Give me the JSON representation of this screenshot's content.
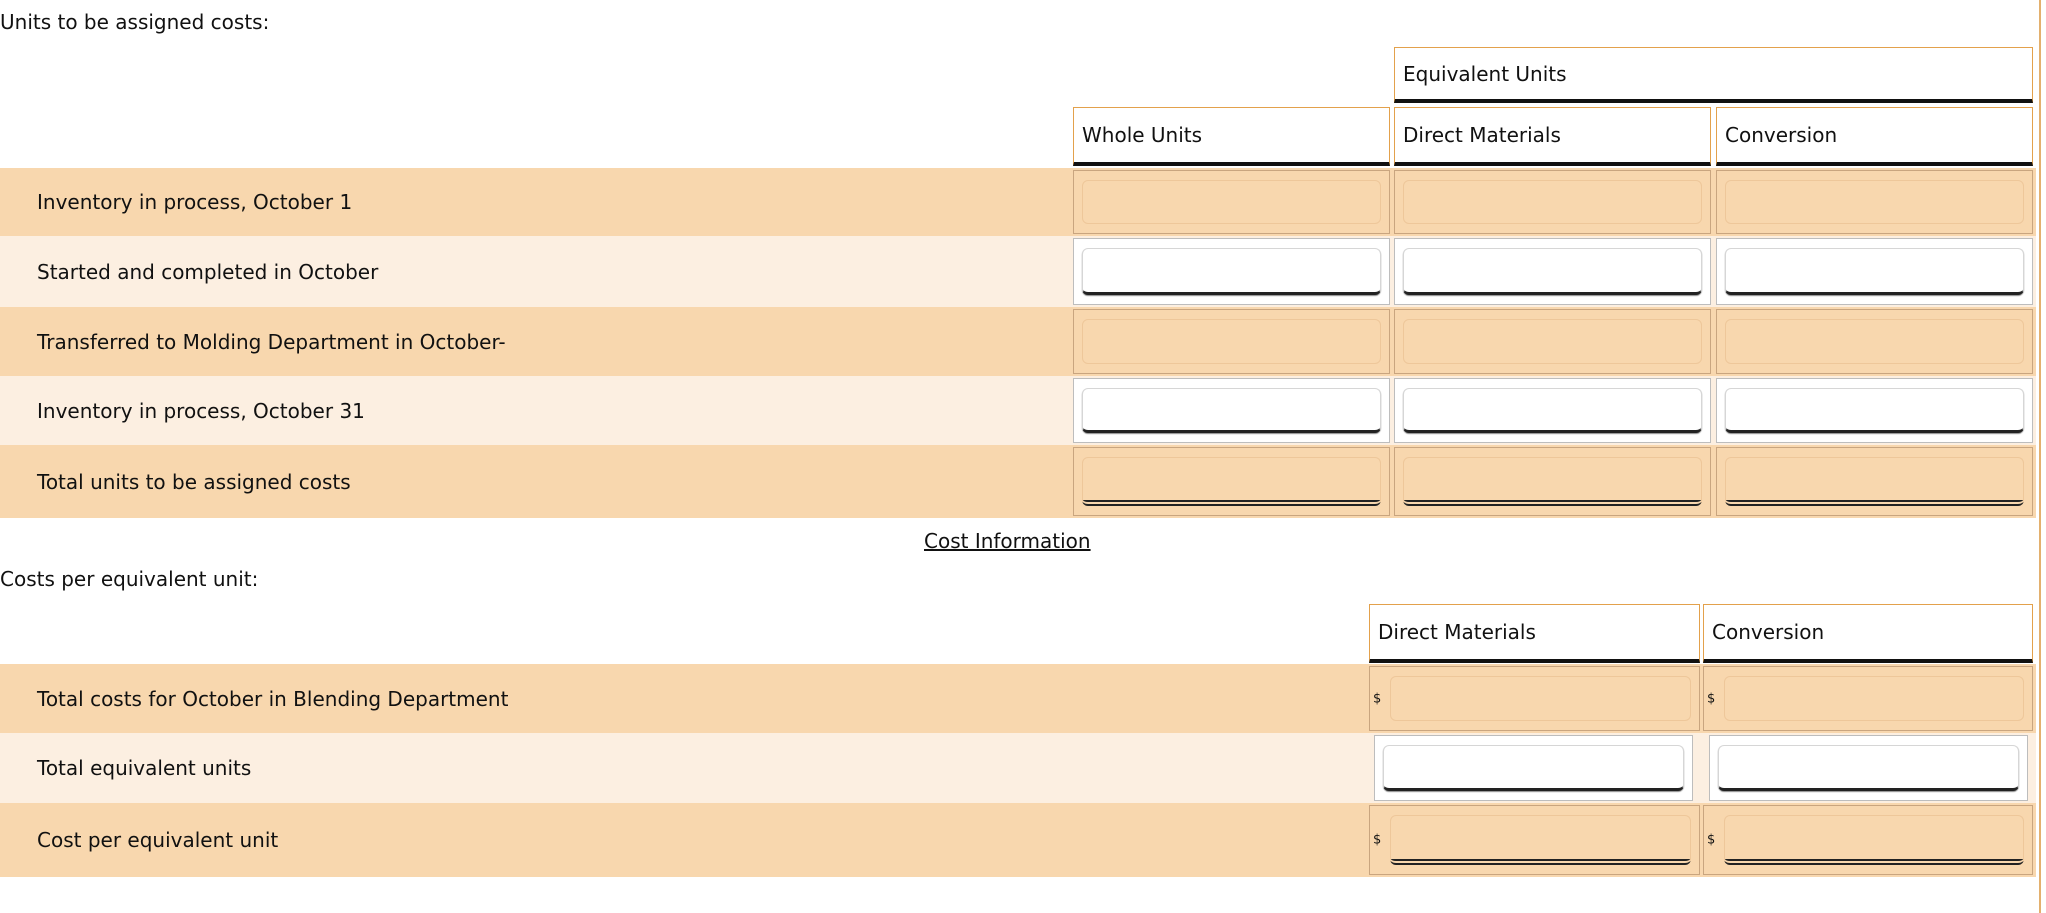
{
  "units_section": {
    "title": "Units to be assigned costs:",
    "group_header": "Equivalent Units",
    "columns": [
      "Whole Units",
      "Direct Materials",
      "Conversion"
    ],
    "rows": [
      {
        "label": "Inventory in process, October 1",
        "style": "readonly"
      },
      {
        "label": "Started and completed in October",
        "style": "input"
      },
      {
        "label": "Transferred to Molding Department in October-",
        "style": "readonly"
      },
      {
        "label": "Inventory in process, October 31",
        "style": "input"
      },
      {
        "label": "Total units to be assigned costs",
        "style": "total"
      }
    ]
  },
  "cost_information_link": "Cost Information",
  "cost_section": {
    "title": "Costs per equivalent unit:",
    "columns": [
      "Direct Materials",
      "Conversion"
    ],
    "currency_symbol": "$",
    "rows": [
      {
        "label": "Total costs for October in Blending Department",
        "style": "readonly-dollar"
      },
      {
        "label": "Total equivalent units",
        "style": "input"
      },
      {
        "label": "Cost per equivalent unit",
        "style": "total-dollar"
      }
    ]
  },
  "colors": {
    "row_dark": "#f8d7ae",
    "row_light": "#fcefe1",
    "header_border": "#e3a14c"
  }
}
